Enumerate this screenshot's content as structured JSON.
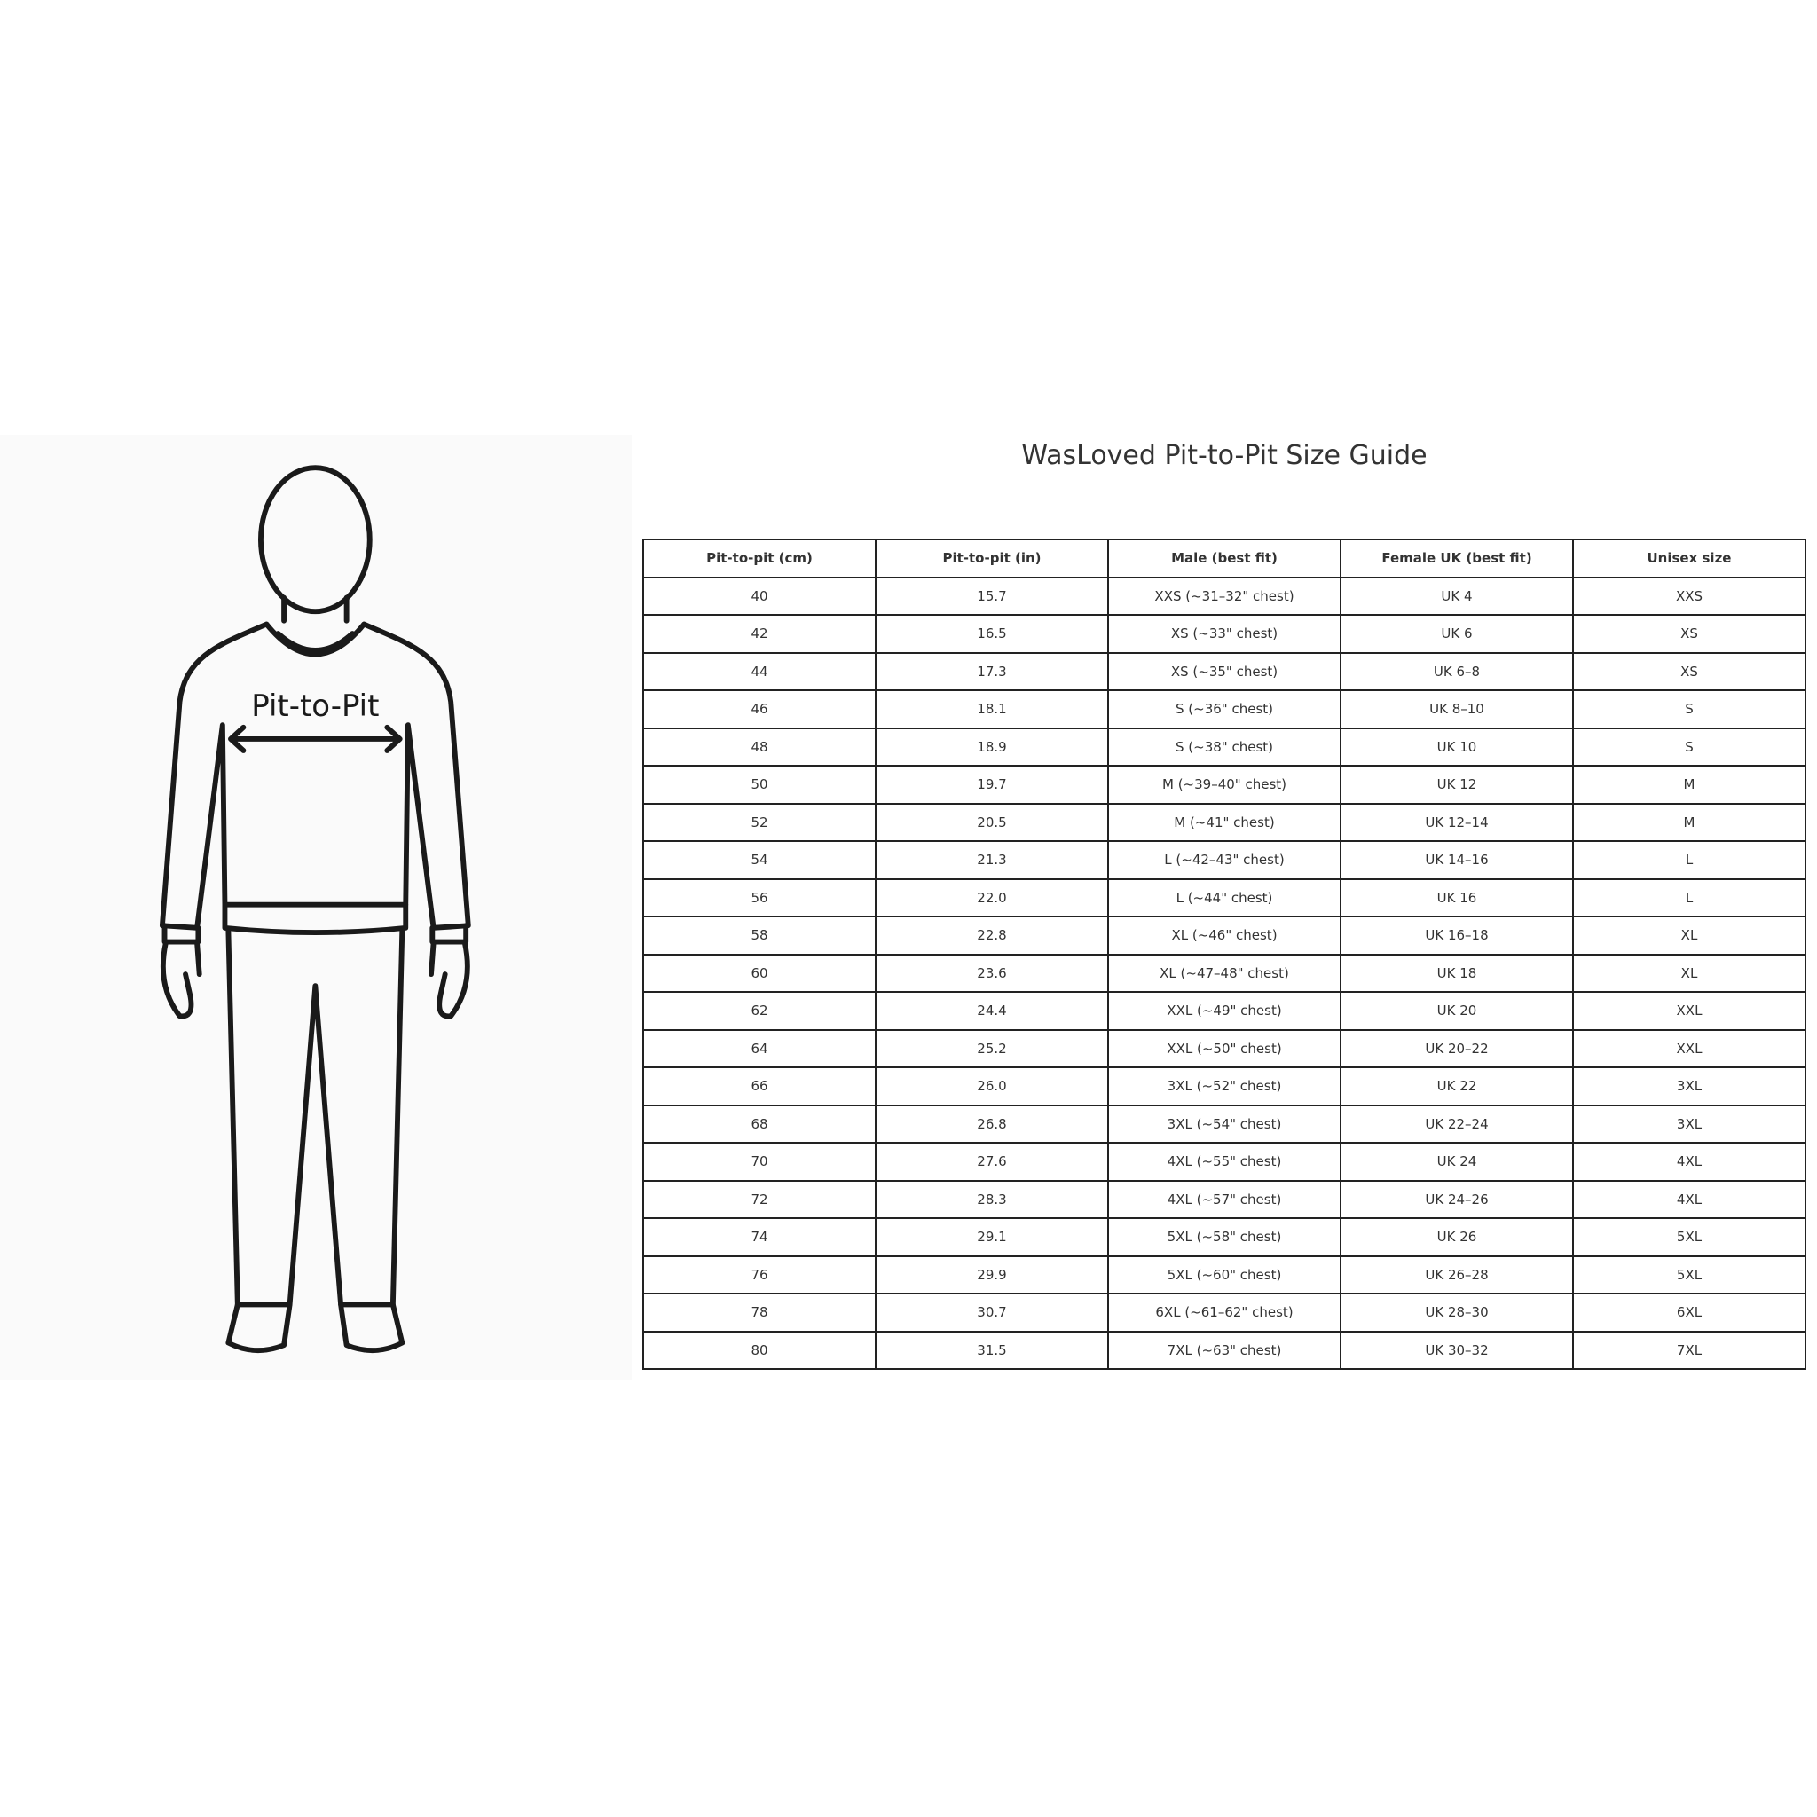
{
  "figure": {
    "label": "Pit-to-Pit"
  },
  "title": "WasLoved Pit-to-Pit Size Guide",
  "table": {
    "headers": [
      "Pit-to-pit (cm)",
      "Pit-to-pit (in)",
      "Male (best fit)",
      "Female UK (best fit)",
      "Unisex size"
    ],
    "rows": [
      [
        "40",
        "15.7",
        "XXS (~31–32\" chest)",
        "UK 4",
        "XXS"
      ],
      [
        "42",
        "16.5",
        "XS (~33\" chest)",
        "UK 6",
        "XS"
      ],
      [
        "44",
        "17.3",
        "XS (~35\" chest)",
        "UK 6–8",
        "XS"
      ],
      [
        "46",
        "18.1",
        "S (~36\" chest)",
        "UK 8–10",
        "S"
      ],
      [
        "48",
        "18.9",
        "S (~38\" chest)",
        "UK 10",
        "S"
      ],
      [
        "50",
        "19.7",
        "M (~39–40\" chest)",
        "UK 12",
        "M"
      ],
      [
        "52",
        "20.5",
        "M (~41\" chest)",
        "UK 12–14",
        "M"
      ],
      [
        "54",
        "21.3",
        "L (~42–43\" chest)",
        "UK 14–16",
        "L"
      ],
      [
        "56",
        "22.0",
        "L (~44\" chest)",
        "UK 16",
        "L"
      ],
      [
        "58",
        "22.8",
        "XL (~46\" chest)",
        "UK 16–18",
        "XL"
      ],
      [
        "60",
        "23.6",
        "XL (~47–48\" chest)",
        "UK 18",
        "XL"
      ],
      [
        "62",
        "24.4",
        "XXL (~49\" chest)",
        "UK 20",
        "XXL"
      ],
      [
        "64",
        "25.2",
        "XXL (~50\" chest)",
        "UK 20–22",
        "XXL"
      ],
      [
        "66",
        "26.0",
        "3XL (~52\" chest)",
        "UK 22",
        "3XL"
      ],
      [
        "68",
        "26.8",
        "3XL (~54\" chest)",
        "UK 22–24",
        "3XL"
      ],
      [
        "70",
        "27.6",
        "4XL (~55\" chest)",
        "UK 24",
        "4XL"
      ],
      [
        "72",
        "28.3",
        "4XL (~57\" chest)",
        "UK 24–26",
        "4XL"
      ],
      [
        "74",
        "29.1",
        "5XL (~58\" chest)",
        "UK 26",
        "5XL"
      ],
      [
        "76",
        "29.9",
        "5XL (~60\" chest)",
        "UK 26–28",
        "5XL"
      ],
      [
        "78",
        "30.7",
        "6XL (~61–62\" chest)",
        "UK 28–30",
        "6XL"
      ],
      [
        "80",
        "31.5",
        "7XL (~63\" chest)",
        "UK 30–32",
        "7XL"
      ]
    ]
  }
}
